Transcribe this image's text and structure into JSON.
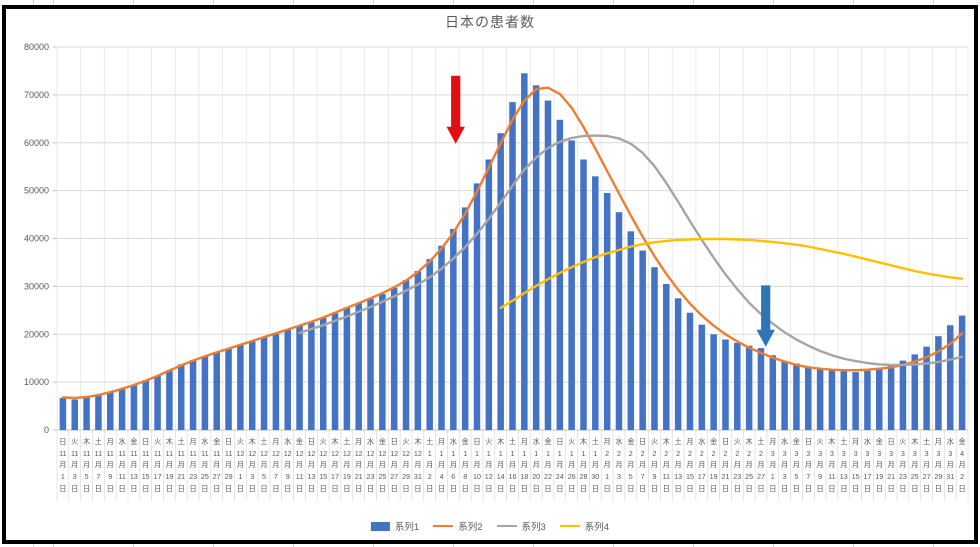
{
  "title": "日本の患者数",
  "legend": {
    "items": [
      {
        "label": "系列1",
        "swatch": "bar",
        "color": "#4472C4"
      },
      {
        "label": "系列2",
        "swatch": "line",
        "color": "#ED7D31"
      },
      {
        "label": "系列3",
        "swatch": "line",
        "color": "#A5A5A5"
      },
      {
        "label": "系列4",
        "swatch": "line",
        "color": "#FFC000"
      }
    ]
  },
  "colors": {
    "bar": "#4472C4",
    "line2": "#ED7D31",
    "line3": "#A5A5A5",
    "line4": "#FFC000",
    "grid": "#D9D9D9",
    "grid_vertical": "#E4E4E4",
    "axis": "#BFBFBF",
    "text": "#595959",
    "red_arrow": "#E01010",
    "blue_arrow": "#2E75B6",
    "frame": "#000000"
  },
  "chart_data": {
    "type": "combo",
    "title": "日本の患者数",
    "ylim": [
      0,
      80000
    ],
    "y_tick_step": 10000,
    "y_tick_labels": [
      "0",
      "10000",
      "20000",
      "30000",
      "40000",
      "50000",
      "60000",
      "70000",
      "80000"
    ],
    "x_label_note": "weekday over month/day, every 2 days from 11月1日 to 4月2日",
    "categories": [
      [
        "日",
        "11",
        "1"
      ],
      [
        "火",
        "11",
        "3"
      ],
      [
        "木",
        "11",
        "5"
      ],
      [
        "土",
        "11",
        "7"
      ],
      [
        "月",
        "11",
        "9"
      ],
      [
        "水",
        "11",
        "11"
      ],
      [
        "金",
        "11",
        "13"
      ],
      [
        "日",
        "11",
        "15"
      ],
      [
        "火",
        "11",
        "17"
      ],
      [
        "木",
        "11",
        "19"
      ],
      [
        "土",
        "11",
        "21"
      ],
      [
        "月",
        "11",
        "23"
      ],
      [
        "水",
        "11",
        "25"
      ],
      [
        "金",
        "11",
        "27"
      ],
      [
        "日",
        "11",
        "29"
      ],
      [
        "火",
        "12",
        "1"
      ],
      [
        "木",
        "12",
        "3"
      ],
      [
        "土",
        "12",
        "5"
      ],
      [
        "月",
        "12",
        "7"
      ],
      [
        "水",
        "12",
        "9"
      ],
      [
        "金",
        "12",
        "11"
      ],
      [
        "日",
        "12",
        "13"
      ],
      [
        "火",
        "12",
        "15"
      ],
      [
        "木",
        "12",
        "17"
      ],
      [
        "土",
        "12",
        "19"
      ],
      [
        "月",
        "12",
        "21"
      ],
      [
        "水",
        "12",
        "23"
      ],
      [
        "金",
        "12",
        "25"
      ],
      [
        "日",
        "12",
        "27"
      ],
      [
        "火",
        "12",
        "29"
      ],
      [
        "木",
        "12",
        "31"
      ],
      [
        "土",
        "1",
        "2"
      ],
      [
        "月",
        "1",
        "4"
      ],
      [
        "水",
        "1",
        "6"
      ],
      [
        "金",
        "1",
        "8"
      ],
      [
        "日",
        "1",
        "10"
      ],
      [
        "火",
        "1",
        "12"
      ],
      [
        "木",
        "1",
        "14"
      ],
      [
        "土",
        "1",
        "16"
      ],
      [
        "月",
        "1",
        "18"
      ],
      [
        "水",
        "1",
        "20"
      ],
      [
        "金",
        "1",
        "22"
      ],
      [
        "日",
        "1",
        "24"
      ],
      [
        "火",
        "1",
        "26"
      ],
      [
        "木",
        "1",
        "28"
      ],
      [
        "土",
        "1",
        "30"
      ],
      [
        "月",
        "2",
        "1"
      ],
      [
        "水",
        "2",
        "3"
      ],
      [
        "金",
        "2",
        "5"
      ],
      [
        "日",
        "2",
        "7"
      ],
      [
        "火",
        "2",
        "9"
      ],
      [
        "木",
        "2",
        "11"
      ],
      [
        "土",
        "2",
        "13"
      ],
      [
        "月",
        "2",
        "15"
      ],
      [
        "水",
        "2",
        "17"
      ],
      [
        "金",
        "2",
        "19"
      ],
      [
        "日",
        "2",
        "21"
      ],
      [
        "火",
        "2",
        "23"
      ],
      [
        "木",
        "2",
        "25"
      ],
      [
        "土",
        "2",
        "27"
      ],
      [
        "月",
        "3",
        "1"
      ],
      [
        "水",
        "3",
        "3"
      ],
      [
        "金",
        "3",
        "5"
      ],
      [
        "日",
        "3",
        "7"
      ],
      [
        "火",
        "3",
        "9"
      ],
      [
        "木",
        "3",
        "11"
      ],
      [
        "土",
        "3",
        "13"
      ],
      [
        "月",
        "3",
        "15"
      ],
      [
        "水",
        "3",
        "17"
      ],
      [
        "金",
        "3",
        "19"
      ],
      [
        "日",
        "3",
        "21"
      ],
      [
        "火",
        "3",
        "23"
      ],
      [
        "木",
        "3",
        "25"
      ],
      [
        "土",
        "3",
        "27"
      ],
      [
        "月",
        "3",
        "29"
      ],
      [
        "水",
        "3",
        "31"
      ],
      [
        "金",
        "4",
        "2"
      ]
    ],
    "series": [
      {
        "name": "系列1",
        "type": "bar",
        "color": "#4472C4",
        "values": [
          6700,
          6400,
          6900,
          7400,
          8000,
          8600,
          9400,
          10400,
          11300,
          12500,
          13700,
          14600,
          15400,
          16300,
          17000,
          17800,
          18500,
          19400,
          20100,
          21000,
          21800,
          22500,
          23400,
          24400,
          25600,
          26500,
          27400,
          28400,
          29700,
          31300,
          33200,
          35700,
          38500,
          42000,
          46500,
          51500,
          56500,
          62000,
          68500,
          74500,
          72000,
          68800,
          64800,
          60500,
          56500,
          53000,
          49500,
          45500,
          41500,
          37500,
          34000,
          30500,
          27500,
          24500,
          22000,
          20000,
          18900,
          18200,
          17600,
          17100,
          15600,
          14400,
          13900,
          13300,
          12900,
          12500,
          12300,
          12100,
          12400,
          12900,
          13600,
          14500,
          15800,
          17400,
          19600,
          21900,
          23900
        ]
      },
      {
        "name": "系列2",
        "type": "line",
        "color": "#ED7D31",
        "values": [
          6800,
          6700,
          6900,
          7300,
          7900,
          8600,
          9400,
          10300,
          11300,
          12400,
          13500,
          14500,
          15400,
          16200,
          17000,
          17800,
          18600,
          19400,
          20200,
          21000,
          21800,
          22600,
          23500,
          24500,
          25500,
          26500,
          27500,
          28600,
          29800,
          31200,
          33000,
          35200,
          37900,
          41200,
          45200,
          49800,
          54800,
          59900,
          64800,
          68800,
          71200,
          71500,
          70200,
          67300,
          63300,
          58800,
          54100,
          49400,
          44800,
          40400,
          36300,
          32600,
          29300,
          26400,
          23900,
          21800,
          20000,
          18500,
          17200,
          16100,
          15100,
          14300,
          13600,
          13100,
          12800,
          12600,
          12500,
          12500,
          12600,
          12800,
          13100,
          13600,
          14300,
          15200,
          16400,
          18000,
          20200
        ]
      },
      {
        "name": "系列3",
        "type": "line",
        "color": "#A5A5A5",
        "values": [
          null,
          null,
          null,
          null,
          null,
          null,
          null,
          null,
          null,
          null,
          null,
          null,
          null,
          null,
          null,
          null,
          null,
          null,
          null,
          null,
          20300,
          21100,
          21900,
          22800,
          23700,
          24700,
          25700,
          26800,
          27900,
          29100,
          30400,
          31900,
          33700,
          35800,
          38200,
          41000,
          44100,
          47500,
          51000,
          54400,
          56900,
          58900,
          60200,
          61000,
          61400,
          61500,
          61400,
          60900,
          59800,
          57900,
          55100,
          51600,
          47700,
          43600,
          39700,
          36000,
          32500,
          29400,
          26600,
          24200,
          22200,
          20400,
          18900,
          17600,
          16500,
          15600,
          14900,
          14400,
          14000,
          13700,
          13600,
          13600,
          13700,
          13900,
          14200,
          14700,
          15300
        ]
      },
      {
        "name": "系列4",
        "type": "line",
        "color": "#FFC000",
        "values": [
          null,
          null,
          null,
          null,
          null,
          null,
          null,
          null,
          null,
          null,
          null,
          null,
          null,
          null,
          null,
          null,
          null,
          null,
          null,
          null,
          null,
          null,
          null,
          null,
          null,
          null,
          null,
          null,
          null,
          null,
          null,
          null,
          null,
          null,
          null,
          null,
          null,
          25500,
          27000,
          28600,
          30100,
          31500,
          32800,
          34000,
          35100,
          36100,
          36900,
          37600,
          38300,
          38800,
          39200,
          39500,
          39700,
          39800,
          39900,
          39900,
          39900,
          39800,
          39700,
          39500,
          39300,
          39000,
          38700,
          38300,
          37800,
          37300,
          36800,
          36200,
          35600,
          35000,
          34400,
          33800,
          33200,
          32700,
          32300,
          31900,
          31600
        ]
      }
    ],
    "annotations": [
      {
        "name": "red-down-arrow",
        "shape": "down-arrow",
        "color": "#E01010",
        "x_index": 33.7,
        "top_value": 74000,
        "tip_value": 59800
      },
      {
        "name": "blue-down-arrow",
        "shape": "down-arrow",
        "color": "#2E75B6",
        "x_index": 59.9,
        "top_value": 30200,
        "tip_value": 17400
      }
    ]
  }
}
